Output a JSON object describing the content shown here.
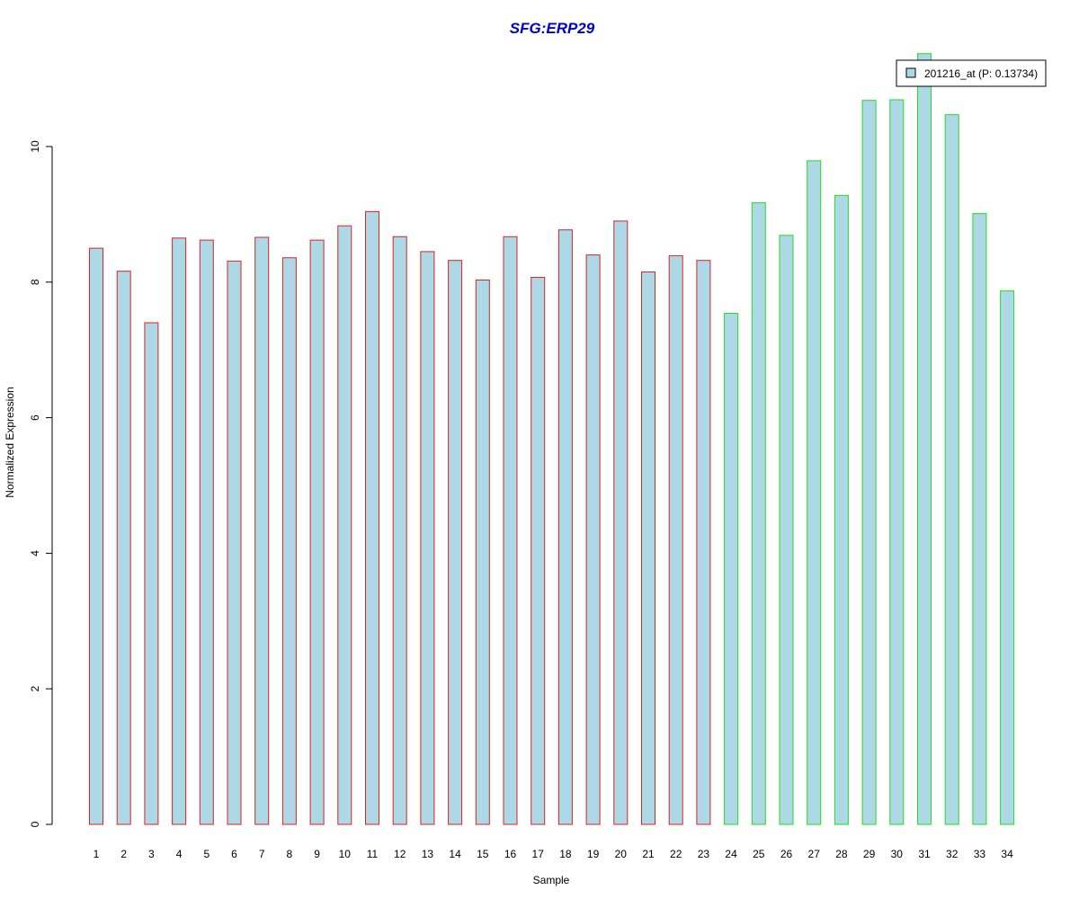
{
  "chart_data": {
    "type": "bar",
    "title": "SFG:ERP29",
    "xlabel": "Sample",
    "ylabel": "Normalized Expression",
    "ylim": [
      0,
      11.4
    ],
    "yticks": [
      0,
      2,
      4,
      6,
      8,
      10
    ],
    "categories": [
      "1",
      "2",
      "3",
      "4",
      "5",
      "6",
      "7",
      "8",
      "9",
      "10",
      "11",
      "12",
      "13",
      "14",
      "15",
      "16",
      "17",
      "18",
      "19",
      "20",
      "21",
      "22",
      "23",
      "24",
      "25",
      "26",
      "27",
      "28",
      "29",
      "30",
      "31",
      "32",
      "33",
      "34"
    ],
    "series": [
      {
        "name": "201216_at (P: 0.13734)",
        "values": [
          8.5,
          8.16,
          7.4,
          8.65,
          8.62,
          8.31,
          8.66,
          8.36,
          8.62,
          8.83,
          9.04,
          8.67,
          8.45,
          8.32,
          8.03,
          8.67,
          8.07,
          8.77,
          8.4,
          8.9,
          8.15,
          8.39,
          8.32,
          7.54,
          9.17,
          8.69,
          9.79,
          9.28,
          10.68,
          10.69,
          11.37,
          10.47,
          9.01,
          7.87
        ]
      }
    ],
    "group_border_colors": [
      "#dd2222",
      "#dd2222",
      "#dd2222",
      "#dd2222",
      "#dd2222",
      "#dd2222",
      "#dd2222",
      "#dd2222",
      "#dd2222",
      "#dd2222",
      "#dd2222",
      "#dd2222",
      "#dd2222",
      "#dd2222",
      "#dd2222",
      "#dd2222",
      "#dd2222",
      "#dd2222",
      "#dd2222",
      "#dd2222",
      "#dd2222",
      "#dd2222",
      "#dd2222",
      "#22dd22",
      "#22dd22",
      "#22dd22",
      "#22dd22",
      "#22dd22",
      "#22dd22",
      "#22dd22",
      "#22dd22",
      "#22dd22",
      "#22dd22",
      "#22dd22"
    ],
    "bar_fill": "#add8e6",
    "title_color": "#0000cc",
    "legend_position": "top-right",
    "grid": false
  }
}
